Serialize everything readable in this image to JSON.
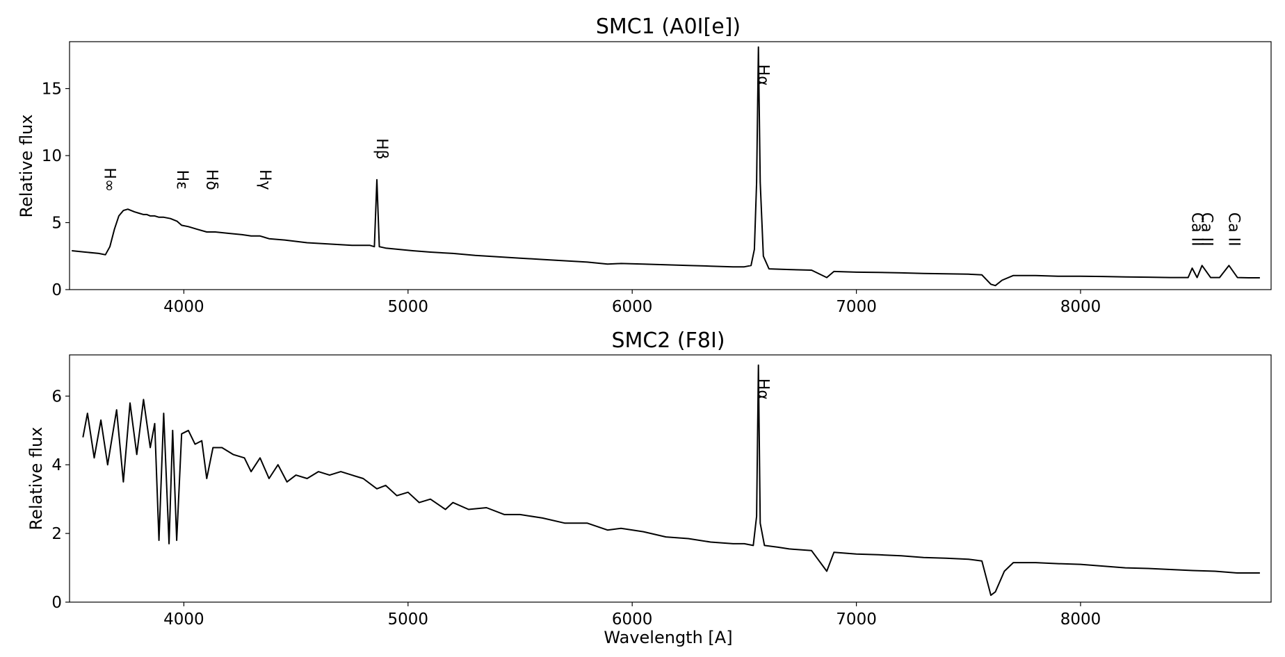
{
  "figure": {
    "xlabel": "Wavelength [A]"
  },
  "chart_data": [
    {
      "type": "line",
      "title": "SMC1 (A0I[e])",
      "xlabel": "",
      "ylabel": "Relative flux",
      "xlim": [
        3490,
        8850
      ],
      "ylim": [
        0,
        18.5
      ],
      "xticks": [
        4000,
        5000,
        6000,
        7000,
        8000
      ],
      "yticks": [
        0,
        5,
        10,
        15
      ],
      "grid": false,
      "legend": "none",
      "color": "#000000",
      "series": [
        {
          "x": [
            3500,
            3560,
            3620,
            3650,
            3670,
            3690,
            3710,
            3730,
            3750,
            3780,
            3800,
            3820,
            3835,
            3850,
            3870,
            3889,
            3910,
            3940,
            3970,
            3990,
            4020,
            4060,
            4102,
            4140,
            4200,
            4260,
            4300,
            4340,
            4380,
            4450,
            4550,
            4650,
            4750,
            4800,
            4830,
            4850,
            4861,
            4872,
            4900,
            4960,
            5020,
            5100,
            5200,
            5300,
            5400,
            5500,
            5600,
            5700,
            5800,
            5890,
            5950,
            6050,
            6150,
            6250,
            6350,
            6450,
            6500,
            6530,
            6545,
            6555,
            6563,
            6571,
            6585,
            6610,
            6700,
            6800,
            6868,
            6900,
            7000,
            7100,
            7200,
            7300,
            7400,
            7500,
            7560,
            7600,
            7620,
            7650,
            7700,
            7800,
            7900,
            8000,
            8100,
            8200,
            8300,
            8400,
            8450,
            8480,
            8498,
            8520,
            8542,
            8580,
            8620,
            8662,
            8700,
            8750,
            8800
          ],
          "values": [
            2.9,
            2.8,
            2.7,
            2.6,
            3.2,
            4.5,
            5.5,
            5.9,
            6.0,
            5.8,
            5.7,
            5.6,
            5.6,
            5.5,
            5.5,
            5.4,
            5.4,
            5.3,
            5.1,
            4.8,
            4.7,
            4.5,
            4.3,
            4.3,
            4.2,
            4.1,
            4.0,
            4.0,
            3.8,
            3.7,
            3.5,
            3.4,
            3.3,
            3.3,
            3.3,
            3.2,
            8.2,
            3.2,
            3.1,
            3.0,
            2.9,
            2.8,
            2.7,
            2.55,
            2.45,
            2.35,
            2.25,
            2.15,
            2.05,
            1.9,
            1.95,
            1.9,
            1.85,
            1.8,
            1.75,
            1.7,
            1.7,
            1.8,
            3.0,
            8.0,
            18.1,
            8.0,
            2.5,
            1.55,
            1.5,
            1.45,
            0.9,
            1.35,
            1.3,
            1.28,
            1.25,
            1.2,
            1.18,
            1.15,
            1.1,
            0.4,
            0.3,
            0.7,
            1.05,
            1.05,
            1.0,
            1.0,
            0.98,
            0.95,
            0.93,
            0.9,
            0.9,
            0.9,
            1.6,
            0.9,
            1.8,
            0.9,
            0.9,
            1.8,
            0.9,
            0.88,
            0.88
          ]
        }
      ],
      "annotations": [
        {
          "text": "H∞",
          "x": 3647,
          "y": 8.2
        },
        {
          "text": "Hε",
          "x": 3970,
          "y": 8.2
        },
        {
          "text": "Hδ",
          "x": 4102,
          "y": 8.2
        },
        {
          "text": "Hγ",
          "x": 4340,
          "y": 8.2
        },
        {
          "text": "Hβ",
          "x": 4861,
          "y": 10.5
        },
        {
          "text": "Hα",
          "x": 6563,
          "y": 16.0
        },
        {
          "text": "Ca II",
          "x": 8498,
          "y": 4.5
        },
        {
          "text": "Ca II",
          "x": 8542,
          "y": 4.5
        },
        {
          "text": "Ca II",
          "x": 8662,
          "y": 4.5
        }
      ]
    },
    {
      "type": "line",
      "title": "SMC2 (F8I)",
      "xlabel": "Wavelength [A]",
      "ylabel": "Relative flux",
      "xlim": [
        3490,
        8850
      ],
      "ylim": [
        0,
        7.2
      ],
      "xticks": [
        4000,
        5000,
        6000,
        7000,
        8000
      ],
      "yticks": [
        0,
        2,
        4,
        6
      ],
      "grid": false,
      "legend": "none",
      "color": "#000000",
      "series": [
        {
          "x": [
            3550,
            3570,
            3600,
            3630,
            3660,
            3700,
            3730,
            3760,
            3790,
            3820,
            3850,
            3870,
            3889,
            3910,
            3934,
            3950,
            3968,
            3990,
            4020,
            4050,
            4080,
            4102,
            4130,
            4170,
            4220,
            4270,
            4300,
            4340,
            4380,
            4420,
            4460,
            4500,
            4550,
            4600,
            4650,
            4700,
            4750,
            4800,
            4861,
            4900,
            4950,
            5000,
            5050,
            5100,
            5167,
            5200,
            5270,
            5350,
            5430,
            5500,
            5600,
            5700,
            5800,
            5890,
            5950,
            6050,
            6150,
            6250,
            6350,
            6450,
            6500,
            6540,
            6555,
            6563,
            6571,
            6590,
            6650,
            6700,
            6800,
            6868,
            6900,
            7000,
            7100,
            7200,
            7300,
            7400,
            7500,
            7560,
            7600,
            7620,
            7660,
            7700,
            7800,
            7900,
            8000,
            8100,
            8200,
            8300,
            8400,
            8500,
            8600,
            8700,
            8800
          ],
          "values": [
            4.8,
            5.5,
            4.2,
            5.3,
            4.0,
            5.6,
            3.5,
            5.8,
            4.3,
            5.9,
            4.5,
            5.2,
            1.8,
            5.5,
            1.7,
            5.0,
            1.8,
            4.9,
            5.0,
            4.6,
            4.7,
            3.6,
            4.5,
            4.5,
            4.3,
            4.2,
            3.8,
            4.2,
            3.6,
            4.0,
            3.5,
            3.7,
            3.6,
            3.8,
            3.7,
            3.8,
            3.7,
            3.6,
            3.3,
            3.4,
            3.1,
            3.2,
            2.9,
            3.0,
            2.7,
            2.9,
            2.7,
            2.75,
            2.55,
            2.55,
            2.45,
            2.3,
            2.3,
            2.1,
            2.15,
            2.05,
            1.9,
            1.85,
            1.75,
            1.7,
            1.7,
            1.65,
            2.5,
            6.9,
            2.3,
            1.65,
            1.6,
            1.55,
            1.5,
            0.9,
            1.45,
            1.4,
            1.38,
            1.35,
            1.3,
            1.28,
            1.25,
            1.2,
            0.2,
            0.3,
            0.9,
            1.15,
            1.15,
            1.12,
            1.1,
            1.05,
            1.0,
            0.98,
            0.95,
            0.92,
            0.9,
            0.85,
            0.85
          ]
        }
      ],
      "annotations": [
        {
          "text": "Hα",
          "x": 6563,
          "y": 6.2
        }
      ]
    }
  ]
}
